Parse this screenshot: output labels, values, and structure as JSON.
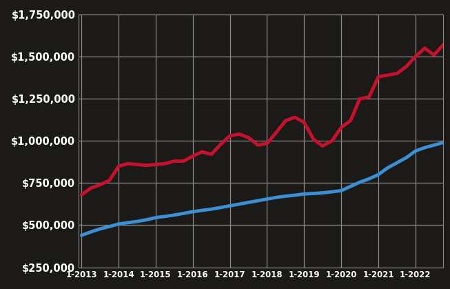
{
  "chart_data": {
    "type": "line",
    "categories": [
      "1-2013",
      null,
      null,
      null,
      "1-2014",
      null,
      null,
      null,
      "1-2015",
      null,
      null,
      null,
      "1-2016",
      null,
      null,
      null,
      "1-2017",
      null,
      null,
      null,
      "1-2018",
      null,
      null,
      null,
      "1-2019",
      null,
      null,
      null,
      "1-2020",
      null,
      null,
      null,
      "1-2021",
      null,
      null,
      null,
      "1-2022",
      null,
      null,
      null
    ],
    "series": [
      {
        "color": "#c8102e",
        "values": [
          680000,
          720000,
          740000,
          765000,
          850000,
          865000,
          860000,
          855000,
          860000,
          865000,
          880000,
          880000,
          910000,
          935000,
          920000,
          980000,
          1030000,
          1040000,
          1020000,
          975000,
          985000,
          1050000,
          1120000,
          1140000,
          1110000,
          1010000,
          970000,
          1000000,
          1080000,
          1120000,
          1250000,
          1260000,
          1380000,
          1390000,
          1400000,
          1440000,
          1500000,
          1550000,
          1510000,
          1570000
        ]
      },
      {
        "color": "#3a8fd6",
        "values": [
          440000,
          460000,
          478000,
          492000,
          507000,
          515000,
          522000,
          532000,
          545000,
          552000,
          560000,
          570000,
          580000,
          588000,
          595000,
          605000,
          615000,
          625000,
          635000,
          645000,
          655000,
          665000,
          672000,
          678000,
          685000,
          688000,
          692000,
          698000,
          705000,
          730000,
          755000,
          775000,
          800000,
          840000,
          870000,
          900000,
          940000,
          960000,
          975000,
          990000
        ]
      }
    ],
    "ylim": [
      250000,
      1750000
    ],
    "yticks": [
      {
        "value": 250000,
        "label": "$250,000"
      },
      {
        "value": 500000,
        "label": "$500,000"
      },
      {
        "value": 750000,
        "label": "$750,000"
      },
      {
        "value": 1000000,
        "label": "$1,000,000"
      },
      {
        "value": 1250000,
        "label": "$1,250,000"
      },
      {
        "value": 1500000,
        "label": "$1,500,000"
      },
      {
        "value": 1750000,
        "label": "$1,750,000"
      }
    ],
    "grid": true
  }
}
